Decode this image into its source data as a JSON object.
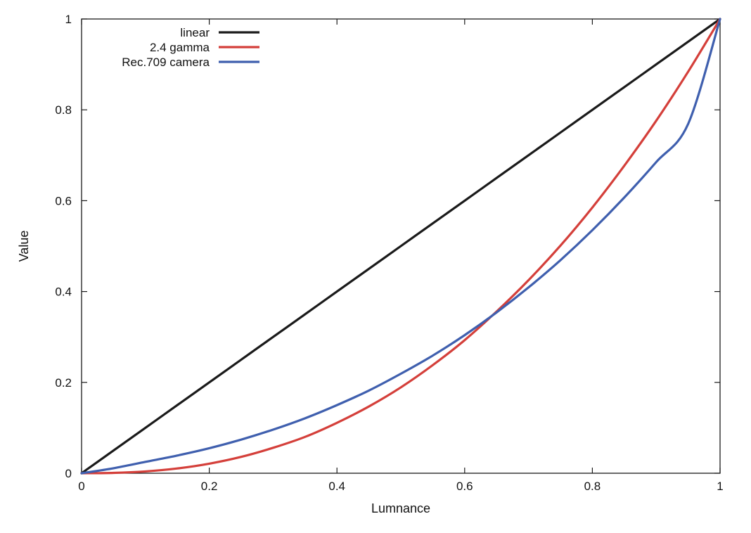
{
  "chart_data": {
    "type": "line",
    "title": "",
    "xlabel": "Lumnance",
    "ylabel": "Value",
    "xlim": [
      0,
      1
    ],
    "ylim": [
      0,
      1
    ],
    "grid": false,
    "legend_position": "top-left",
    "x_ticks": [
      "0",
      "0.2",
      "0.4",
      "0.6",
      "0.8",
      "1"
    ],
    "y_ticks": [
      "0",
      "0.2",
      "0.4",
      "0.6",
      "0.8",
      "1"
    ],
    "x": [
      0,
      0.05,
      0.1,
      0.15,
      0.2,
      0.25,
      0.3,
      0.35,
      0.4,
      0.45,
      0.5,
      0.55,
      0.6,
      0.65,
      0.7,
      0.75,
      0.8,
      0.85,
      0.9,
      0.95,
      1
    ],
    "series": [
      {
        "name": "linear",
        "color": "#1a1a1a",
        "values": [
          0,
          0.05,
          0.1,
          0.15,
          0.2,
          0.25,
          0.3,
          0.35,
          0.4,
          0.45,
          0.5,
          0.55,
          0.6,
          0.65,
          0.7,
          0.75,
          0.8,
          0.85,
          0.9,
          0.95,
          1
        ]
      },
      {
        "name": "2.4 gamma",
        "color": "#d43f3a",
        "values": [
          0,
          0.0008,
          0.004,
          0.0105,
          0.021,
          0.036,
          0.056,
          0.08,
          0.111,
          0.147,
          0.189,
          0.238,
          0.293,
          0.356,
          0.425,
          0.501,
          0.585,
          0.677,
          0.776,
          0.884,
          1
        ]
      },
      {
        "name": "Rec.709 camera",
        "color": "#3f5fae",
        "values": [
          0,
          0.011,
          0.025,
          0.039,
          0.055,
          0.074,
          0.096,
          0.121,
          0.15,
          0.182,
          0.219,
          0.259,
          0.304,
          0.354,
          0.409,
          0.469,
          0.535,
          0.607,
          0.685,
          0.769,
          1
        ]
      }
    ]
  }
}
